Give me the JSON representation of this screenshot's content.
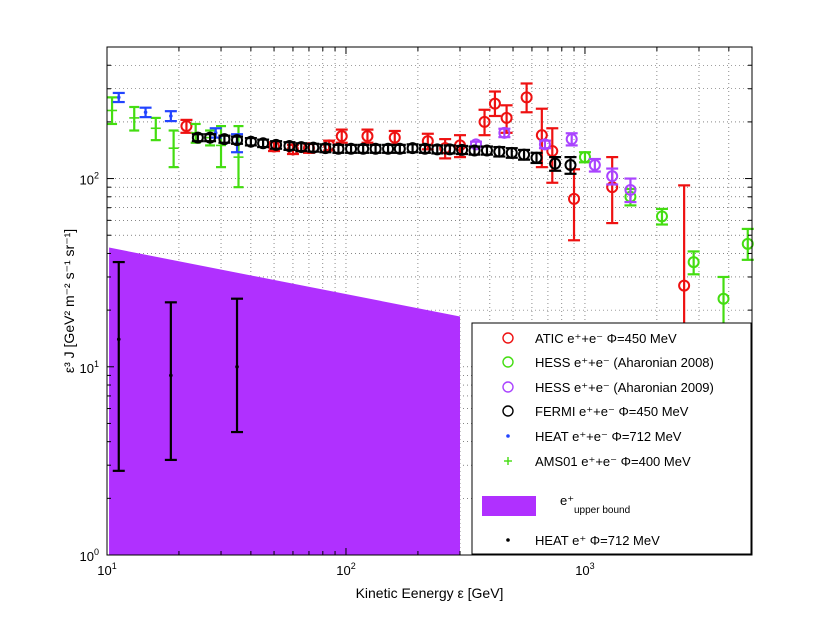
{
  "chart_data": {
    "type": "scatter",
    "xlabel": "Kinetic Eenergy ε [GeV]",
    "ylabel": "ε³ J  [GeV² m⁻² s⁻¹ sr⁻¹]",
    "xscale": "log",
    "yscale": "log",
    "xlim": [
      10,
      5000
    ],
    "ylim": [
      1,
      500
    ],
    "grid": true,
    "legend_position": "bottom-right",
    "x_ticks": [
      {
        "value": 10,
        "base": "10",
        "exp": "1"
      },
      {
        "value": 100,
        "base": "10",
        "exp": "2"
      },
      {
        "value": 1000,
        "base": "10",
        "exp": "3"
      }
    ],
    "y_ticks": [
      {
        "value": 1,
        "base": "10",
        "exp": "0"
      },
      {
        "value": 10,
        "base": "10",
        "exp": "1"
      },
      {
        "value": 100,
        "base": "10",
        "exp": "2"
      }
    ],
    "band": {
      "legend_label": "e⁺",
      "legend_sub": "upper bound",
      "color": "#b030ff",
      "points": [
        [
          10.2,
          43
        ],
        [
          300,
          18.5
        ],
        [
          300,
          1
        ],
        [
          10.2,
          1
        ]
      ]
    },
    "series": [
      {
        "name": "ATIC e⁺+e⁻ Φ=450 MeV",
        "color": "#ee1111",
        "marker": "circle",
        "points": [
          {
            "x": 21.5,
            "y": 190,
            "lo": 175,
            "hi": 205
          },
          {
            "x": 50,
            "y": 148,
            "lo": 140,
            "hi": 156
          },
          {
            "x": 60,
            "y": 143,
            "lo": 135,
            "hi": 151
          },
          {
            "x": 70,
            "y": 145,
            "lo": 137,
            "hi": 153
          },
          {
            "x": 85,
            "y": 150,
            "lo": 141,
            "hi": 159
          },
          {
            "x": 96,
            "y": 168,
            "lo": 155,
            "hi": 182
          },
          {
            "x": 123,
            "y": 168,
            "lo": 155,
            "hi": 182
          },
          {
            "x": 160,
            "y": 165,
            "lo": 152,
            "hi": 179
          },
          {
            "x": 220,
            "y": 158,
            "lo": 143,
            "hi": 173
          },
          {
            "x": 260,
            "y": 145,
            "lo": 128,
            "hi": 162
          },
          {
            "x": 300,
            "y": 150,
            "lo": 130,
            "hi": 170
          },
          {
            "x": 380,
            "y": 200,
            "lo": 170,
            "hi": 232
          },
          {
            "x": 420,
            "y": 250,
            "lo": 215,
            "hi": 290
          },
          {
            "x": 470,
            "y": 210,
            "lo": 175,
            "hi": 245
          },
          {
            "x": 570,
            "y": 270,
            "lo": 225,
            "hi": 320
          },
          {
            "x": 660,
            "y": 170,
            "lo": 115,
            "hi": 235
          },
          {
            "x": 730,
            "y": 140,
            "lo": 95,
            "hi": 185
          },
          {
            "x": 900,
            "y": 78,
            "lo": 47,
            "hi": 112
          },
          {
            "x": 1300,
            "y": 90,
            "lo": 58,
            "hi": 130
          },
          {
            "x": 2600,
            "y": 27,
            "lo": 8,
            "hi": 92
          }
        ]
      },
      {
        "name": "HESS e⁺+e⁻ (Aharonian 2008)",
        "color": "#44dd11",
        "marker": "circle",
        "points": [
          {
            "x": 1000,
            "y": 130,
            "lo": 122,
            "hi": 138
          },
          {
            "x": 1550,
            "y": 80,
            "lo": 72,
            "hi": 88
          },
          {
            "x": 2100,
            "y": 63,
            "lo": 57,
            "hi": 69
          },
          {
            "x": 2850,
            "y": 36,
            "lo": 31,
            "hi": 41
          },
          {
            "x": 3800,
            "y": 23,
            "lo": 16,
            "hi": 30
          },
          {
            "x": 4800,
            "y": 45,
            "lo": 37,
            "hi": 54
          }
        ]
      },
      {
        "name": "HESS e⁺+e⁻ (Aharonian 2009)",
        "color": "#aa44ff",
        "marker": "circle",
        "points": [
          {
            "x": 350,
            "y": 152,
            "lo": 147,
            "hi": 157
          },
          {
            "x": 460,
            "y": 175,
            "lo": 166,
            "hi": 184
          },
          {
            "x": 680,
            "y": 152,
            "lo": 145,
            "hi": 159
          },
          {
            "x": 880,
            "y": 162,
            "lo": 150,
            "hi": 174
          },
          {
            "x": 1100,
            "y": 118,
            "lo": 109,
            "hi": 127
          },
          {
            "x": 1300,
            "y": 103,
            "lo": 93,
            "hi": 113
          },
          {
            "x": 1550,
            "y": 87,
            "lo": 75,
            "hi": 100
          }
        ]
      },
      {
        "name": "FERMI  e⁺+e⁻ Φ=450 MeV",
        "color": "#000000",
        "marker": "circle",
        "points": [
          {
            "x": 24,
            "y": 165,
            "lo": 158,
            "hi": 172
          },
          {
            "x": 27,
            "y": 165,
            "lo": 158,
            "hi": 172
          },
          {
            "x": 31,
            "y": 162,
            "lo": 155,
            "hi": 169
          },
          {
            "x": 35,
            "y": 160,
            "lo": 153,
            "hi": 167
          },
          {
            "x": 40,
            "y": 157,
            "lo": 150,
            "hi": 164
          },
          {
            "x": 45,
            "y": 154,
            "lo": 147,
            "hi": 161
          },
          {
            "x": 51,
            "y": 151,
            "lo": 144,
            "hi": 158
          },
          {
            "x": 58,
            "y": 149,
            "lo": 142,
            "hi": 156
          },
          {
            "x": 65,
            "y": 147,
            "lo": 140,
            "hi": 154
          },
          {
            "x": 73,
            "y": 146,
            "lo": 139,
            "hi": 153
          },
          {
            "x": 82,
            "y": 145,
            "lo": 138,
            "hi": 152
          },
          {
            "x": 93,
            "y": 144,
            "lo": 137,
            "hi": 151
          },
          {
            "x": 105,
            "y": 144,
            "lo": 137,
            "hi": 151
          },
          {
            "x": 118,
            "y": 144,
            "lo": 137,
            "hi": 151
          },
          {
            "x": 133,
            "y": 144,
            "lo": 137,
            "hi": 151
          },
          {
            "x": 150,
            "y": 144,
            "lo": 137,
            "hi": 151
          },
          {
            "x": 168,
            "y": 144,
            "lo": 137,
            "hi": 151
          },
          {
            "x": 190,
            "y": 145,
            "lo": 138,
            "hi": 152
          },
          {
            "x": 214,
            "y": 144,
            "lo": 137,
            "hi": 151
          },
          {
            "x": 241,
            "y": 143,
            "lo": 136,
            "hi": 150
          },
          {
            "x": 272,
            "y": 143,
            "lo": 136,
            "hi": 150
          },
          {
            "x": 306,
            "y": 142,
            "lo": 135,
            "hi": 149
          },
          {
            "x": 345,
            "y": 141,
            "lo": 134,
            "hi": 148
          },
          {
            "x": 389,
            "y": 141,
            "lo": 134,
            "hi": 148
          },
          {
            "x": 438,
            "y": 139,
            "lo": 131,
            "hi": 147
          },
          {
            "x": 494,
            "y": 137,
            "lo": 129,
            "hi": 145
          },
          {
            "x": 556,
            "y": 134,
            "lo": 126,
            "hi": 142
          },
          {
            "x": 627,
            "y": 129,
            "lo": 121,
            "hi": 137
          },
          {
            "x": 750,
            "y": 120,
            "lo": 110,
            "hi": 130
          },
          {
            "x": 870,
            "y": 118,
            "lo": 106,
            "hi": 130
          }
        ]
      },
      {
        "name": "HEAT  e⁺+e⁻ Φ=712 MeV",
        "color": "#2244ff",
        "marker": "dot",
        "points": [
          {
            "x": 11.2,
            "y": 270,
            "lo": 255,
            "hi": 285
          },
          {
            "x": 14.5,
            "y": 225,
            "lo": 212,
            "hi": 238
          },
          {
            "x": 18.5,
            "y": 215,
            "lo": 202,
            "hi": 228
          },
          {
            "x": 28.5,
            "y": 175,
            "lo": 165,
            "hi": 185
          },
          {
            "x": 35,
            "y": 155,
            "lo": 138,
            "hi": 172
          }
        ]
      },
      {
        "name": "AMS01 e⁺+e⁻ Φ=400 MeV",
        "color": "#44dd11",
        "marker": "plus",
        "points": [
          {
            "x": 10.5,
            "y": 230,
            "lo": 195,
            "hi": 270
          },
          {
            "x": 13,
            "y": 210,
            "lo": 180,
            "hi": 240
          },
          {
            "x": 16,
            "y": 185,
            "lo": 160,
            "hi": 210
          },
          {
            "x": 19,
            "y": 145,
            "lo": 115,
            "hi": 180
          },
          {
            "x": 23.5,
            "y": 175,
            "lo": 155,
            "hi": 195
          },
          {
            "x": 27,
            "y": 165,
            "lo": 150,
            "hi": 180
          },
          {
            "x": 30,
            "y": 150,
            "lo": 115,
            "hi": 190
          },
          {
            "x": 35.5,
            "y": 130,
            "lo": 90,
            "hi": 190
          }
        ]
      },
      {
        "name": "HEAT  e⁺ Φ=712 MeV",
        "color": "#000000",
        "marker": "dot",
        "points": [
          {
            "x": 11.2,
            "y": 14,
            "lo": 2.8,
            "hi": 36
          },
          {
            "x": 18.5,
            "y": 9,
            "lo": 3.2,
            "hi": 22
          },
          {
            "x": 35,
            "y": 10,
            "lo": 4.5,
            "hi": 23
          }
        ]
      }
    ]
  }
}
